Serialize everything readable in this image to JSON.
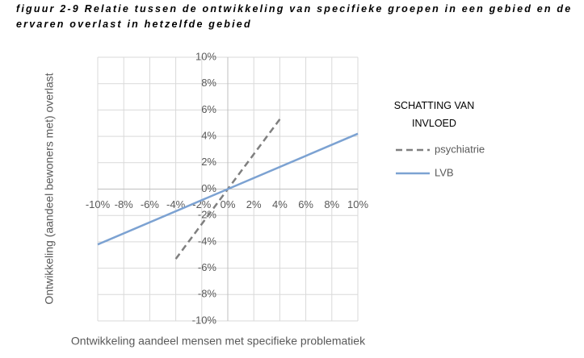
{
  "chart_data": {
    "type": "line",
    "title": "figuur 2-9 Relatie tussen de ontwikkeling van specifieke groepen in een gebied en de ervaren overlast in hetzelfde gebied",
    "x_label": "Ontwikkeling aandeel mensen met specifieke problematiek",
    "y_label": "Ontwikkeling (aandeel bewoners met) overlast",
    "legend_title": "SCHATTING VAN INVLOED",
    "xlim": [
      -10,
      10
    ],
    "ylim": [
      -10,
      10
    ],
    "xticks": [
      {
        "value": -10,
        "label": "-10%"
      },
      {
        "value": -8,
        "label": "-8%"
      },
      {
        "value": -6,
        "label": "-6%"
      },
      {
        "value": -4,
        "label": "-4%"
      },
      {
        "value": -2,
        "label": "-2%"
      },
      {
        "value": 0,
        "label": "0%"
      },
      {
        "value": 2,
        "label": "2%"
      },
      {
        "value": 4,
        "label": "4%"
      },
      {
        "value": 6,
        "label": "6%"
      },
      {
        "value": 8,
        "label": "8%"
      },
      {
        "value": 10,
        "label": "10%"
      }
    ],
    "yticks": [
      {
        "value": -10,
        "label": "-10%"
      },
      {
        "value": -8,
        "label": "-8%"
      },
      {
        "value": -6,
        "label": "-6%"
      },
      {
        "value": -4,
        "label": "-4%"
      },
      {
        "value": -2,
        "label": "-2%"
      },
      {
        "value": 0,
        "label": "0%"
      },
      {
        "value": 2,
        "label": "2%"
      },
      {
        "value": 4,
        "label": "4%"
      },
      {
        "value": 6,
        "label": "6%"
      },
      {
        "value": 8,
        "label": "8%"
      },
      {
        "value": 10,
        "label": "10%"
      }
    ],
    "grid": true,
    "series": [
      {
        "name": "psychiatrie",
        "color": "#7f7f7f",
        "style": "dashed",
        "x": [
          -4,
          4
        ],
        "values": [
          -5.3,
          5.3
        ]
      },
      {
        "name": "LVB",
        "color": "#7ca2d2",
        "style": "solid",
        "x": [
          -10,
          10
        ],
        "values": [
          -4.2,
          4.2
        ]
      }
    ]
  }
}
